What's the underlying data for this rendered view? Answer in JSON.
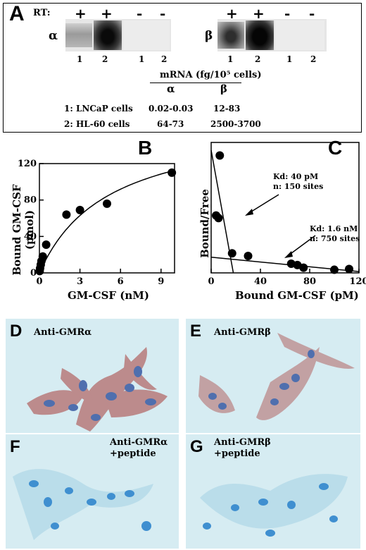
{
  "panel_a": {
    "letter": "A",
    "rt_label": "RT:",
    "signs_alpha": [
      "+",
      "+",
      "-",
      "-"
    ],
    "signs_beta": [
      "+",
      "+",
      "-",
      "-"
    ],
    "alpha_symbol": "α",
    "beta_symbol": "β",
    "lane_numbers_alpha": [
      "1",
      "2",
      "1",
      "2"
    ],
    "lane_numbers_beta": [
      "1",
      "2",
      "1",
      "2"
    ],
    "table_header": "mRNA (fg/10⁵ cells)",
    "col_alpha": "α",
    "col_beta": "β",
    "rows": [
      {
        "label": "1: LNCaP cells",
        "alpha": "0.02-0.03",
        "beta": "12-83"
      },
      {
        "label": "2: HL-60 cells",
        "alpha": "64-73",
        "beta": "2500-3700"
      }
    ]
  },
  "chart_data": [
    {
      "type": "scatter",
      "panel": "B",
      "xlabel": "GM-CSF (nM)",
      "ylabel": "Bound GM-CSF (pmol)",
      "xlim": [
        0,
        10
      ],
      "ylim": [
        0,
        120
      ],
      "xticks": [
        "0",
        "3",
        "6",
        "9"
      ],
      "yticks": [
        "0",
        "40",
        "80",
        "120"
      ],
      "points": [
        {
          "x": 0.02,
          "y": 2
        },
        {
          "x": 0.05,
          "y": 5
        },
        {
          "x": 0.1,
          "y": 9
        },
        {
          "x": 0.15,
          "y": 13
        },
        {
          "x": 0.25,
          "y": 18
        },
        {
          "x": 0.5,
          "y": 31
        },
        {
          "x": 2.0,
          "y": 64
        },
        {
          "x": 3.0,
          "y": 69
        },
        {
          "x": 5.0,
          "y": 76
        },
        {
          "x": 9.8,
          "y": 110
        }
      ],
      "fit": "saturation curve",
      "grid": false
    },
    {
      "type": "scatter",
      "panel": "C",
      "xlabel": "Bound GM-CSF (pM)",
      "ylabel": "Bound/Free",
      "xlim": [
        0,
        120
      ],
      "ylim": [
        0,
        0.5
      ],
      "xticks": [
        "0",
        "40",
        "80",
        "120"
      ],
      "yticks": [],
      "points": [
        {
          "x": 4,
          "y": 0.22
        },
        {
          "x": 6,
          "y": 0.21
        },
        {
          "x": 7,
          "y": 0.45
        },
        {
          "x": 17,
          "y": 0.075
        },
        {
          "x": 30,
          "y": 0.065
        },
        {
          "x": 65,
          "y": 0.035
        },
        {
          "x": 70,
          "y": 0.03
        },
        {
          "x": 75,
          "y": 0.02
        },
        {
          "x": 100,
          "y": 0.012
        },
        {
          "x": 112,
          "y": 0.015
        }
      ],
      "lines": [
        {
          "x1": 0,
          "y1": 0.47,
          "x2": 18,
          "y2": 0.0
        },
        {
          "x1": 0,
          "y1": 0.06,
          "x2": 120,
          "y2": 0.005
        }
      ],
      "annotations": [
        {
          "lines": [
            "Kd: 40 pM",
            "n: 150 sites"
          ]
        },
        {
          "lines": [
            "Kd: 1.6 nM",
            "n: 750 sites"
          ]
        }
      ],
      "grid": false
    }
  ],
  "panel_b": {
    "letter": "B"
  },
  "panel_c": {
    "letter": "C"
  },
  "micrographs": [
    {
      "letter": "D",
      "caption": "Anti-GMRα",
      "caption2": ""
    },
    {
      "letter": "E",
      "caption": "Anti-GMRβ",
      "caption2": ""
    },
    {
      "letter": "F",
      "caption": "Anti-GMRα",
      "caption2": "+peptide"
    },
    {
      "letter": "G",
      "caption": "Anti-GMRβ",
      "caption2": "+peptide"
    }
  ]
}
